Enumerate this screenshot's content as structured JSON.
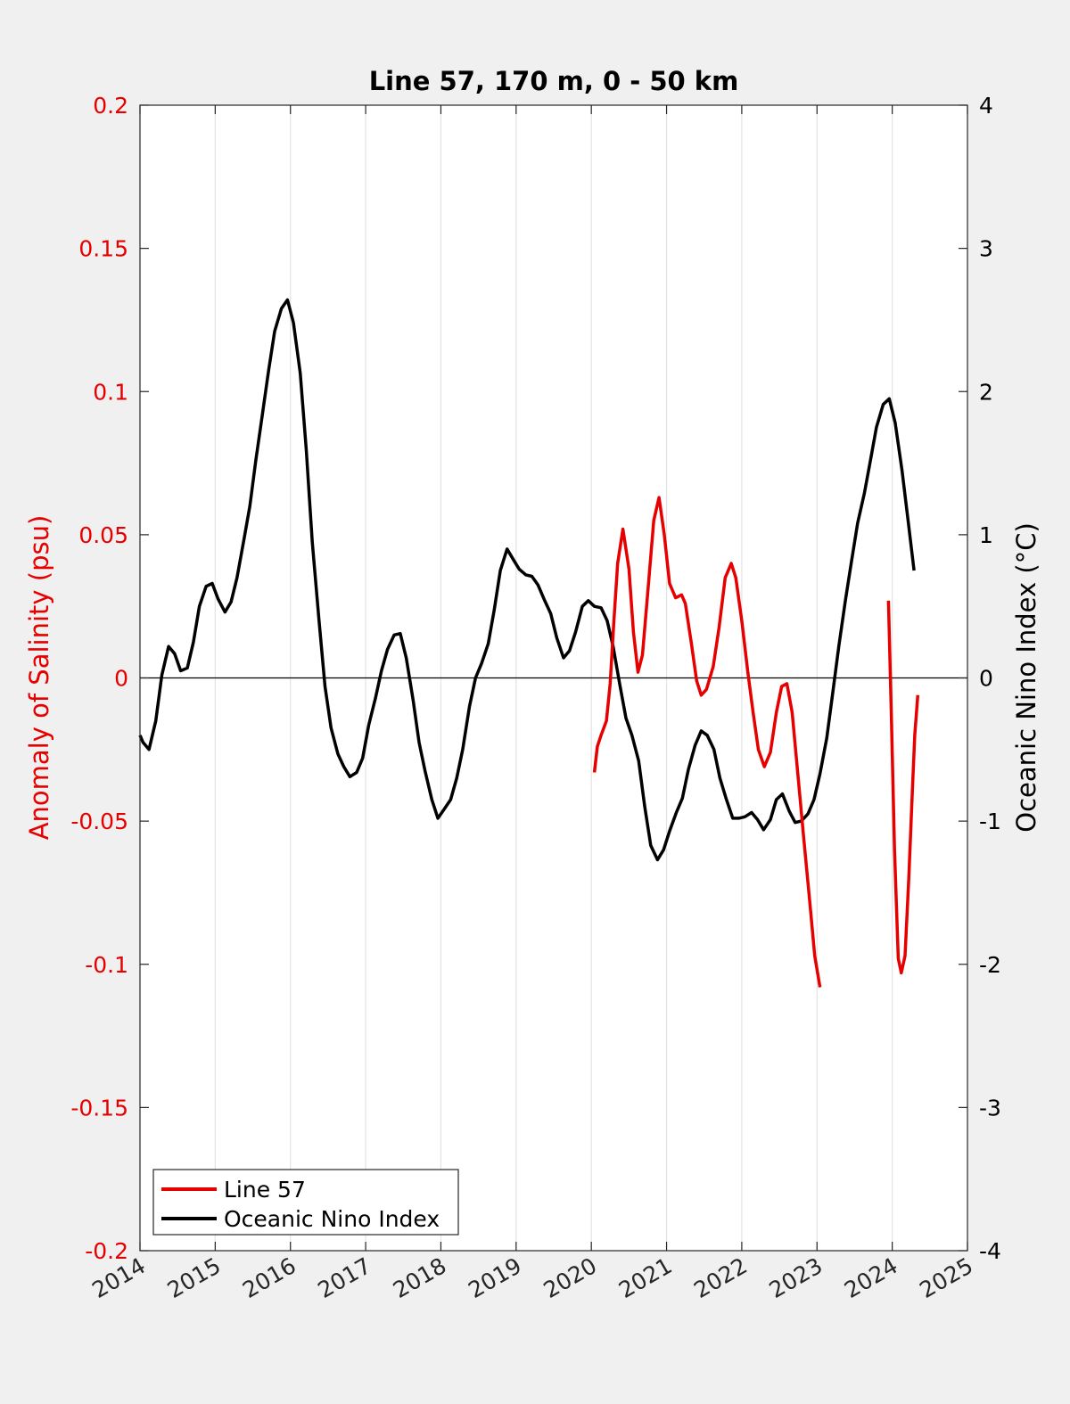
{
  "chart_data": {
    "type": "line",
    "title": "Line 57, 170 m, 0 - 50 km",
    "xlabel": "",
    "ylabel_left": "Anomaly of Salinity (psu)",
    "ylabel_right": "Oceanic Nino Index (°C)",
    "xlim": [
      2014,
      2025
    ],
    "ylim_left": [
      -0.2,
      0.2
    ],
    "ylim_right": [
      -4,
      4
    ],
    "grid": "vertical lines at each year",
    "x_ticks": [
      "2014",
      "2015",
      "2016",
      "2017",
      "2018",
      "2019",
      "2020",
      "2021",
      "2022",
      "2023",
      "2024",
      "2025"
    ],
    "y_ticks_left": [
      "0.2",
      "0.15",
      "0.1",
      "0.05",
      "0",
      "-0.05",
      "-0.1",
      "-0.15",
      "-0.2"
    ],
    "y_ticks_right": [
      "4",
      "3",
      "2",
      "1",
      "0",
      "-1",
      "-2",
      "-3",
      "-4"
    ],
    "colors": {
      "line57": "#e60000",
      "oni": "#000000",
      "left_axis": "#e60000"
    },
    "legend_position": "bottom-left",
    "series": [
      {
        "name": "Line 57",
        "axis": "left",
        "color": "#e60000",
        "segments": [
          [
            [
              2020.04,
              -0.033
            ],
            [
              2020.08,
              -0.024
            ],
            [
              2020.13,
              -0.02
            ],
            [
              2020.2,
              -0.015
            ],
            [
              2020.25,
              -0.002
            ],
            [
              2020.3,
              0.02
            ],
            [
              2020.35,
              0.04
            ],
            [
              2020.42,
              0.052
            ],
            [
              2020.5,
              0.038
            ],
            [
              2020.56,
              0.016
            ],
            [
              2020.62,
              0.002
            ],
            [
              2020.68,
              0.008
            ],
            [
              2020.75,
              0.03
            ],
            [
              2020.83,
              0.055
            ],
            [
              2020.9,
              0.063
            ],
            [
              2020.97,
              0.05
            ],
            [
              2021.04,
              0.033
            ],
            [
              2021.12,
              0.028
            ],
            [
              2021.2,
              0.029
            ],
            [
              2021.25,
              0.026
            ],
            [
              2021.33,
              0.012
            ],
            [
              2021.4,
              -0.001
            ],
            [
              2021.46,
              -0.006
            ],
            [
              2021.53,
              -0.004
            ],
            [
              2021.62,
              0.004
            ],
            [
              2021.7,
              0.018
            ],
            [
              2021.78,
              0.035
            ],
            [
              2021.86,
              0.04
            ],
            [
              2021.92,
              0.035
            ],
            [
              2022.0,
              0.02
            ],
            [
              2022.08,
              0.002
            ],
            [
              2022.15,
              -0.012
            ],
            [
              2022.22,
              -0.025
            ],
            [
              2022.3,
              -0.031
            ],
            [
              2022.38,
              -0.026
            ],
            [
              2022.46,
              -0.012
            ],
            [
              2022.53,
              -0.003
            ],
            [
              2022.6,
              -0.002
            ],
            [
              2022.67,
              -0.012
            ],
            [
              2022.75,
              -0.035
            ],
            [
              2022.82,
              -0.055
            ],
            [
              2022.9,
              -0.077
            ],
            [
              2022.97,
              -0.097
            ],
            [
              2023.04,
              -0.108
            ]
          ],
          [
            [
              2023.95,
              0.027
            ],
            [
              2023.99,
              -0.015
            ],
            [
              2024.03,
              -0.06
            ],
            [
              2024.08,
              -0.098
            ],
            [
              2024.12,
              -0.103
            ],
            [
              2024.17,
              -0.097
            ],
            [
              2024.22,
              -0.07
            ],
            [
              2024.27,
              -0.038
            ],
            [
              2024.3,
              -0.02
            ],
            [
              2024.34,
              -0.006
            ]
          ]
        ]
      },
      {
        "name": "Oceanic Nino Index",
        "axis": "right",
        "color": "#000000",
        "values": [
          [
            2014.0,
            -0.4
          ],
          [
            2014.04,
            -0.45
          ],
          [
            2014.12,
            -0.5
          ],
          [
            2014.21,
            -0.3
          ],
          [
            2014.29,
            0.02
          ],
          [
            2014.38,
            0.22
          ],
          [
            2014.46,
            0.17
          ],
          [
            2014.54,
            0.05
          ],
          [
            2014.63,
            0.07
          ],
          [
            2014.71,
            0.25
          ],
          [
            2014.79,
            0.5
          ],
          [
            2014.88,
            0.64
          ],
          [
            2014.96,
            0.66
          ],
          [
            2015.04,
            0.55
          ],
          [
            2015.13,
            0.46
          ],
          [
            2015.21,
            0.53
          ],
          [
            2015.29,
            0.7
          ],
          [
            2015.38,
            0.96
          ],
          [
            2015.46,
            1.2
          ],
          [
            2015.54,
            1.52
          ],
          [
            2015.63,
            1.85
          ],
          [
            2015.71,
            2.15
          ],
          [
            2015.79,
            2.42
          ],
          [
            2015.88,
            2.58
          ],
          [
            2015.96,
            2.64
          ],
          [
            2016.04,
            2.48
          ],
          [
            2016.13,
            2.13
          ],
          [
            2016.21,
            1.6
          ],
          [
            2016.29,
            0.95
          ],
          [
            2016.38,
            0.4
          ],
          [
            2016.46,
            -0.06
          ],
          [
            2016.54,
            -0.35
          ],
          [
            2016.63,
            -0.53
          ],
          [
            2016.71,
            -0.62
          ],
          [
            2016.79,
            -0.69
          ],
          [
            2016.88,
            -0.66
          ],
          [
            2016.96,
            -0.56
          ],
          [
            2017.04,
            -0.33
          ],
          [
            2017.13,
            -0.14
          ],
          [
            2017.21,
            0.05
          ],
          [
            2017.29,
            0.2
          ],
          [
            2017.38,
            0.3
          ],
          [
            2017.46,
            0.31
          ],
          [
            2017.54,
            0.14
          ],
          [
            2017.63,
            -0.15
          ],
          [
            2017.71,
            -0.45
          ],
          [
            2017.79,
            -0.65
          ],
          [
            2017.88,
            -0.85
          ],
          [
            2017.96,
            -0.98
          ],
          [
            2018.04,
            -0.92
          ],
          [
            2018.13,
            -0.85
          ],
          [
            2018.21,
            -0.7
          ],
          [
            2018.29,
            -0.5
          ],
          [
            2018.38,
            -0.2
          ],
          [
            2018.46,
            0.0
          ],
          [
            2018.54,
            0.1
          ],
          [
            2018.63,
            0.24
          ],
          [
            2018.71,
            0.48
          ],
          [
            2018.79,
            0.75
          ],
          [
            2018.88,
            0.9
          ],
          [
            2018.96,
            0.83
          ],
          [
            2019.04,
            0.76
          ],
          [
            2019.13,
            0.72
          ],
          [
            2019.21,
            0.71
          ],
          [
            2019.29,
            0.65
          ],
          [
            2019.38,
            0.54
          ],
          [
            2019.46,
            0.45
          ],
          [
            2019.54,
            0.28
          ],
          [
            2019.63,
            0.14
          ],
          [
            2019.71,
            0.19
          ],
          [
            2019.79,
            0.32
          ],
          [
            2019.88,
            0.5
          ],
          [
            2019.96,
            0.54
          ],
          [
            2020.04,
            0.5
          ],
          [
            2020.13,
            0.49
          ],
          [
            2020.21,
            0.4
          ],
          [
            2020.29,
            0.22
          ],
          [
            2020.38,
            -0.05
          ],
          [
            2020.46,
            -0.28
          ],
          [
            2020.54,
            -0.4
          ],
          [
            2020.63,
            -0.58
          ],
          [
            2020.71,
            -0.9
          ],
          [
            2020.79,
            -1.17
          ],
          [
            2020.88,
            -1.27
          ],
          [
            2020.96,
            -1.2
          ],
          [
            2021.04,
            -1.07
          ],
          [
            2021.13,
            -0.94
          ],
          [
            2021.21,
            -0.84
          ],
          [
            2021.29,
            -0.64
          ],
          [
            2021.38,
            -0.47
          ],
          [
            2021.46,
            -0.37
          ],
          [
            2021.54,
            -0.4
          ],
          [
            2021.63,
            -0.5
          ],
          [
            2021.71,
            -0.7
          ],
          [
            2021.79,
            -0.84
          ],
          [
            2021.88,
            -0.98
          ],
          [
            2021.96,
            -0.98
          ],
          [
            2022.04,
            -0.97
          ],
          [
            2022.13,
            -0.94
          ],
          [
            2022.21,
            -0.99
          ],
          [
            2022.29,
            -1.06
          ],
          [
            2022.38,
            -0.99
          ],
          [
            2022.46,
            -0.85
          ],
          [
            2022.54,
            -0.81
          ],
          [
            2022.63,
            -0.93
          ],
          [
            2022.71,
            -1.01
          ],
          [
            2022.79,
            -1.0
          ],
          [
            2022.88,
            -0.95
          ],
          [
            2022.96,
            -0.85
          ],
          [
            2023.04,
            -0.67
          ],
          [
            2023.13,
            -0.42
          ],
          [
            2023.21,
            -0.1
          ],
          [
            2023.29,
            0.22
          ],
          [
            2023.38,
            0.55
          ],
          [
            2023.46,
            0.82
          ],
          [
            2023.54,
            1.08
          ],
          [
            2023.63,
            1.29
          ],
          [
            2023.71,
            1.52
          ],
          [
            2023.79,
            1.75
          ],
          [
            2023.88,
            1.91
          ],
          [
            2023.96,
            1.95
          ],
          [
            2024.04,
            1.78
          ],
          [
            2024.13,
            1.45
          ],
          [
            2024.21,
            1.1
          ],
          [
            2024.29,
            0.75
          ]
        ]
      }
    ]
  }
}
